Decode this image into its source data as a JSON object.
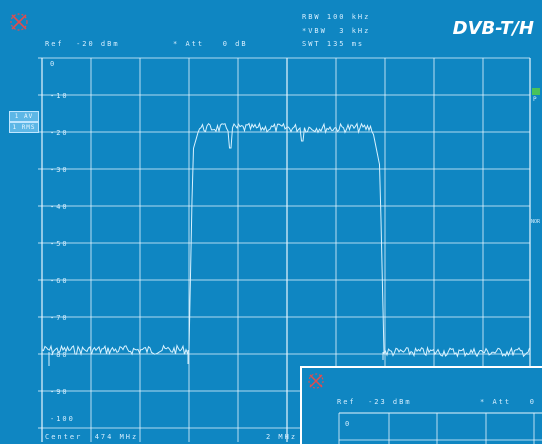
{
  "badge": "DVB-T/H",
  "header": {
    "ref": "Ref  -20 dBm",
    "att": "Att   0 dB",
    "rbw": "RBW 100 kHz",
    "vbw": "VBW  3 kHz",
    "swt": "SWT 135 ms"
  },
  "footer": {
    "center": "Center  474 MHz",
    "span": "2 MHz"
  },
  "side_labels": [
    "1 AV",
    "1 RMS"
  ],
  "right_markers": {
    "p": "P",
    "nor": "NOR"
  },
  "y_ticks": [
    "0",
    "-10",
    "-20",
    "-30",
    "-40",
    "-50",
    "-60",
    "-70",
    "-80",
    "-90",
    "-100"
  ],
  "inset": {
    "ref": "Ref  -23 dBm",
    "att": "Att   0 d",
    "y_top": "0"
  },
  "colors": {
    "background": "#0f86c2",
    "trace": "#cfeeff",
    "grid": "#e6f6ff",
    "badge": "#ffffff",
    "marker_green": "#49c25a",
    "cross_red": "#e14d4d"
  }
}
